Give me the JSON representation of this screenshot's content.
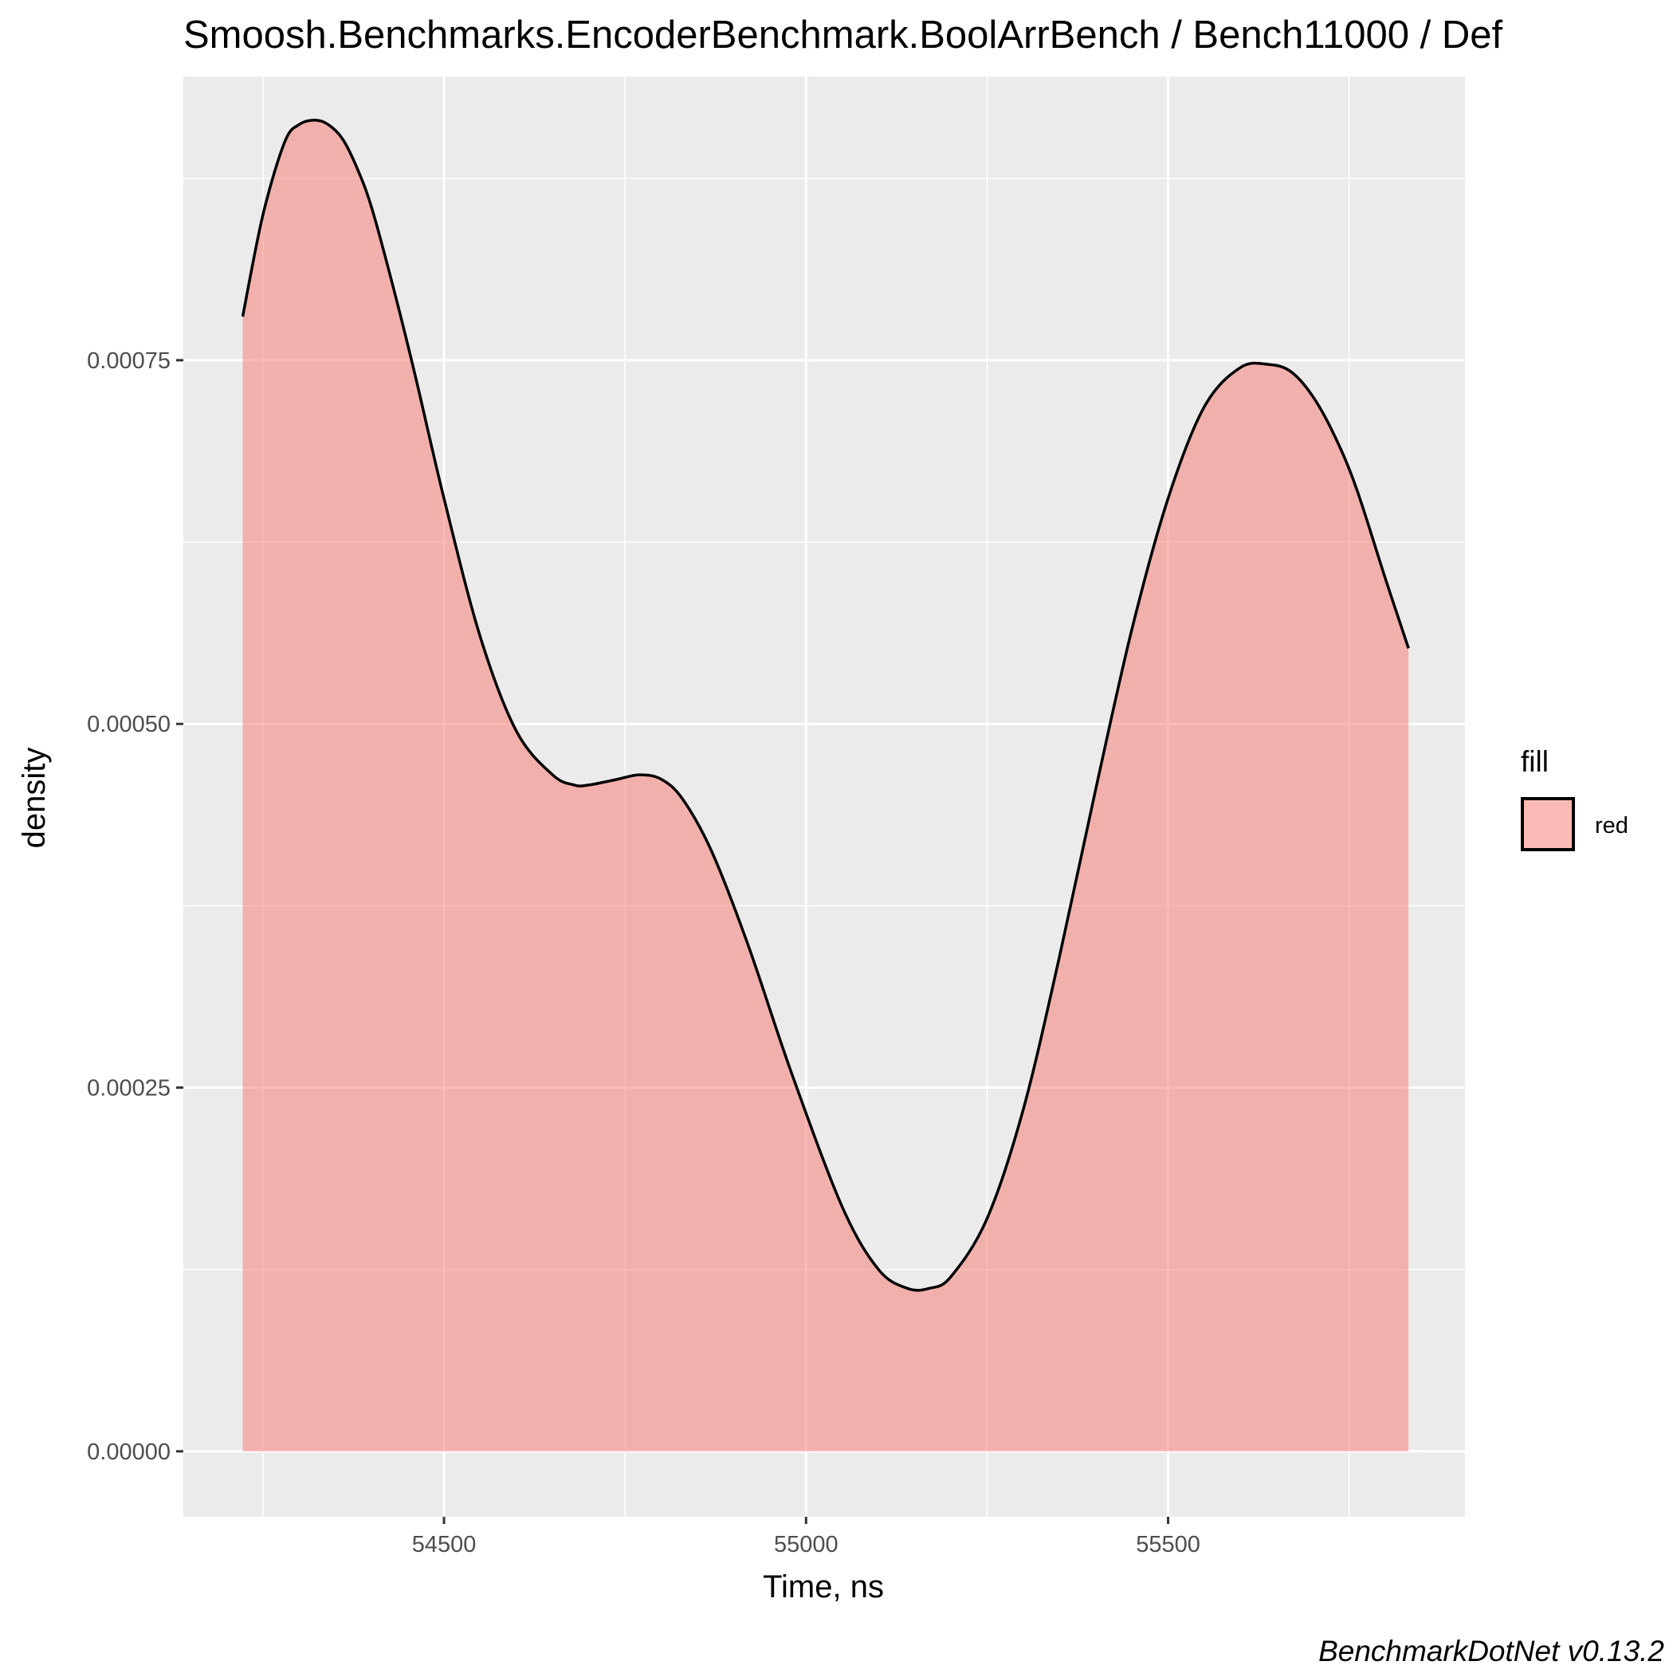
{
  "title": "Smoosh.Benchmarks.EncoderBenchmark.BoolArrBench / Bench11000 / Def",
  "caption": "BenchmarkDotNet v0.13.2",
  "colors": {
    "panel": "#ebebeb",
    "grid": "#ffffff",
    "fill": "#f8766d",
    "line": "#000000"
  },
  "chart_data": {
    "type": "area",
    "title": "Smoosh.Benchmarks.EncoderBenchmark.BoolArrBench / Bench11000 / Def",
    "xlabel": "Time, ns",
    "ylabel": "density",
    "xlim": [
      54140,
      55910
    ],
    "ylim": [
      -4.5e-05,
      0.000945
    ],
    "x_ticks": [
      54500,
      55000,
      55500
    ],
    "x_tick_labels": [
      "54500",
      "55000",
      "55500"
    ],
    "x_minor": [
      54250,
      54750,
      55250,
      55750
    ],
    "y_ticks": [
      0,
      0.00025,
      0.0005,
      0.00075
    ],
    "y_tick_labels": [
      "0.00000",
      "0.00025",
      "0.00050",
      "0.00075"
    ],
    "y_minor": [
      0.000125,
      0.000375,
      0.000625,
      0.000875
    ],
    "grid": true,
    "legend": {
      "title": "fill",
      "placement": "right",
      "entries": [
        {
          "label": "red",
          "color": "#f8766d"
        }
      ]
    },
    "series": [
      {
        "name": "red",
        "x": [
          54222,
          54250,
          54280,
          54300,
          54322,
          54340,
          54360,
          54380,
          54400,
          54430,
          54460,
          54500,
          54550,
          54600,
          54650,
          54680,
          54700,
          54740,
          54770,
          54800,
          54830,
          54870,
          54920,
          54980,
          55050,
          55100,
          55140,
          55170,
          55200,
          55250,
          55300,
          55350,
          55400,
          55450,
          55500,
          55550,
          55600,
          55640,
          55670,
          55700,
          55730,
          55760,
          55800,
          55832
        ],
        "y": [
          0.00078,
          0.00085,
          0.0009,
          0.000912,
          0.000915,
          0.000912,
          0.000902,
          0.000882,
          0.000855,
          0.0008,
          0.00074,
          0.000655,
          0.00056,
          0.000495,
          0.000465,
          0.000458,
          0.000458,
          0.000462,
          0.000465,
          0.000462,
          0.000448,
          0.000412,
          0.000348,
          0.00026,
          0.000168,
          0.000125,
          0.000112,
          0.000112,
          0.00012,
          0.00016,
          0.000235,
          0.00034,
          0.000455,
          0.000565,
          0.000655,
          0.000718,
          0.000745,
          0.000747,
          0.000742,
          0.000725,
          0.000698,
          0.000662,
          0.0006,
          0.000552
        ]
      }
    ]
  }
}
